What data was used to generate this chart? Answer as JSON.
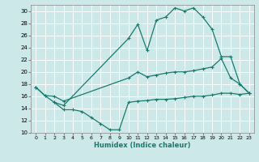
{
  "xlabel": "Humidex (Indice chaleur)",
  "bg_color": "#cce8e8",
  "grid_color": "#ffffff",
  "line_color": "#1a7a6e",
  "xlim": [
    -0.5,
    23.5
  ],
  "ylim": [
    10,
    31
  ],
  "yticks": [
    10,
    12,
    14,
    16,
    18,
    20,
    22,
    24,
    26,
    28,
    30
  ],
  "xticks": [
    0,
    1,
    2,
    3,
    4,
    5,
    6,
    7,
    8,
    9,
    10,
    11,
    12,
    13,
    14,
    15,
    16,
    17,
    18,
    19,
    20,
    21,
    22,
    23
  ],
  "upper_x": [
    0,
    1,
    2,
    3,
    10,
    11,
    12,
    13,
    14,
    15,
    16,
    17,
    18,
    19,
    20,
    21,
    22,
    23
  ],
  "upper_y": [
    17.5,
    16.1,
    15.0,
    14.5,
    25.5,
    27.8,
    23.5,
    28.5,
    29.0,
    30.5,
    30.0,
    30.5,
    29.0,
    27.0,
    22.5,
    22.5,
    18.0,
    16.5
  ],
  "middle_x": [
    0,
    1,
    2,
    3,
    10,
    11,
    12,
    13,
    14,
    15,
    16,
    17,
    18,
    19,
    20,
    21,
    22,
    23
  ],
  "middle_y": [
    17.5,
    16.1,
    16.0,
    15.2,
    19.0,
    20.0,
    19.2,
    19.5,
    19.8,
    20.0,
    20.0,
    20.2,
    20.5,
    20.8,
    22.2,
    19.0,
    18.0,
    16.5
  ],
  "lower_x": [
    2,
    3,
    4,
    5,
    6,
    7,
    8,
    9,
    10,
    11,
    12,
    13,
    14,
    15,
    16,
    17,
    18,
    19,
    20,
    21,
    22,
    23
  ],
  "lower_y": [
    15.0,
    13.8,
    13.8,
    13.5,
    12.5,
    11.5,
    10.5,
    10.5,
    15.0,
    15.2,
    15.3,
    15.5,
    15.5,
    15.6,
    15.8,
    16.0,
    16.0,
    16.2,
    16.5,
    16.5,
    16.3,
    16.5
  ]
}
